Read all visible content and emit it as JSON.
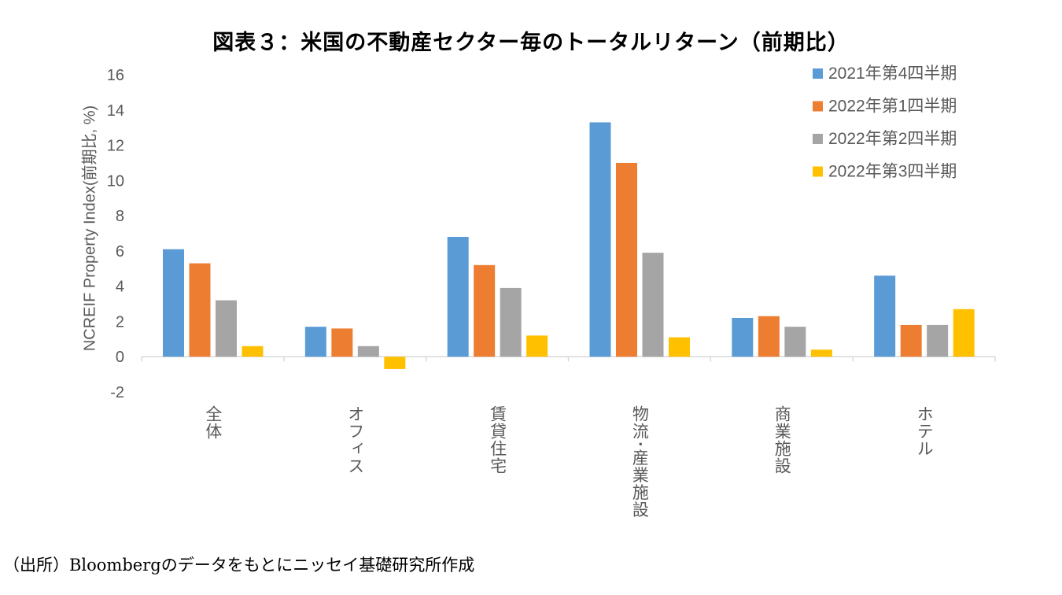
{
  "title": "図表３：米国の不動産セクター毎のトータルリターン（前期比）",
  "source": "（出所）Bloombergのデータをもとにニッセイ基礎研究所作成",
  "chart_data": {
    "type": "bar",
    "title": "図表３：米国の不動産セクター毎のトータルリターン（前期比）",
    "ylabel": "NCREIF Property Index(前期比, %)",
    "xlabel": "",
    "categories": [
      "全体",
      "オフィス",
      "賃貸住宅",
      "物流･産業施設",
      "商業施設",
      "ホテル"
    ],
    "ylim": [
      -2,
      16
    ],
    "yticks": [
      -2,
      0,
      2,
      4,
      6,
      8,
      10,
      12,
      14,
      16
    ],
    "grid": false,
    "legend": "top-right",
    "series": [
      {
        "name": "2021年第4四半期",
        "color": "#5b9bd5",
        "values": [
          6.1,
          1.7,
          6.8,
          13.3,
          2.2,
          4.6
        ]
      },
      {
        "name": "2022年第1四半期",
        "color": "#ed7d31",
        "values": [
          5.3,
          1.6,
          5.2,
          11.0,
          2.3,
          1.8
        ]
      },
      {
        "name": "2022年第2四半期",
        "color": "#a5a5a5",
        "values": [
          3.2,
          0.6,
          3.9,
          5.9,
          1.7,
          1.8
        ]
      },
      {
        "name": "2022年第3四半期",
        "color": "#ffc000",
        "values": [
          0.6,
          -0.7,
          1.2,
          1.1,
          0.4,
          2.7
        ]
      }
    ]
  }
}
